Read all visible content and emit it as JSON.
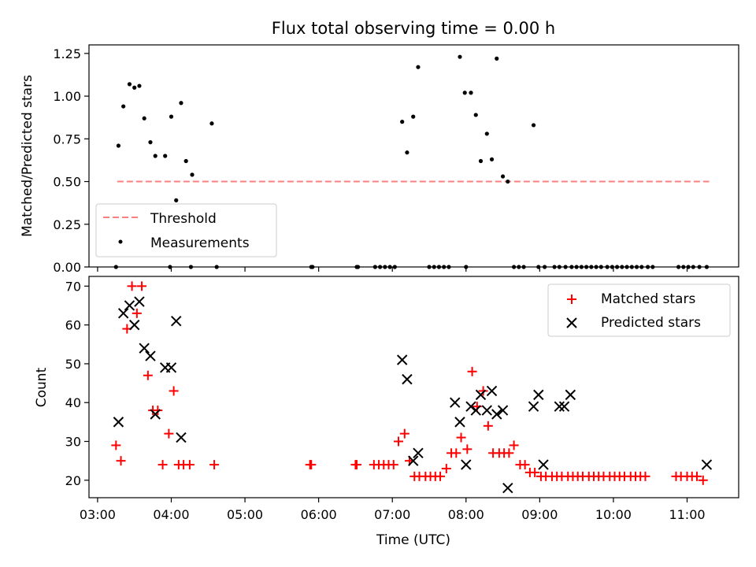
{
  "chart_data": [
    {
      "type": "scatter",
      "title": "Flux total observing time = 0.00 h",
      "xlabel": "",
      "ylabel": "Matched/Predicted stars",
      "xlim": [
        "02:53",
        "11:42"
      ],
      "ylim": [
        0,
        1.3
      ],
      "xticks": [
        "03:00",
        "04:00",
        "05:00",
        "06:00",
        "07:00",
        "08:00",
        "09:00",
        "10:00",
        "11:00"
      ],
      "xtick_labels_visible": false,
      "yticks": [
        "0.00",
        "0.25",
        "0.50",
        "0.75",
        "1.00",
        "1.25"
      ],
      "grid": false,
      "legend": "lower-left",
      "series": [
        {
          "name": "Threshold",
          "style": "dashed-line",
          "color": "#ff7f7f",
          "x": [
            "03:16",
            "11:18"
          ],
          "y": [
            0.5,
            0.5
          ]
        },
        {
          "name": "Measurements",
          "style": "points",
          "color": "#000000",
          "x": [
            "03:17",
            "03:21",
            "03:26",
            "03:30",
            "03:34",
            "03:38",
            "03:43",
            "03:47",
            "03:55",
            "04:00",
            "04:04",
            "04:08",
            "04:12",
            "04:17",
            "04:33",
            "07:08",
            "07:12",
            "07:17",
            "07:21",
            "07:55",
            "07:59",
            "08:04",
            "08:08",
            "08:12",
            "08:17",
            "08:21",
            "08:25",
            "08:30",
            "08:34",
            "08:55",
            "08:59",
            "09:16",
            "09:21",
            "11:16",
            "03:15",
            "03:59",
            "04:16",
            "04:37",
            "05:54",
            "05:55",
            "06:31",
            "06:32",
            "06:46",
            "06:50",
            "06:54",
            "06:58",
            "07:02",
            "07:30",
            "07:34",
            "07:38",
            "07:42",
            "07:46",
            "08:00",
            "08:39",
            "08:43",
            "08:47",
            "09:04",
            "09:12",
            "09:26",
            "09:30",
            "09:34",
            "09:38",
            "09:42",
            "09:46",
            "09:50",
            "09:55",
            "09:59",
            "10:03",
            "10:07",
            "10:11",
            "10:15",
            "10:19",
            "10:23",
            "10:28",
            "10:32",
            "10:53",
            "10:57",
            "11:01",
            "11:05",
            "11:10"
          ],
          "y": [
            0.71,
            0.94,
            1.07,
            1.05,
            1.06,
            0.87,
            0.73,
            0.65,
            0.65,
            0.88,
            0.39,
            0.96,
            0.62,
            0.54,
            0.84,
            0.85,
            0.67,
            0.88,
            1.17,
            1.23,
            1.02,
            1.02,
            0.89,
            0.62,
            0.78,
            0.63,
            1.22,
            0.53,
            0.5,
            0.83,
            0,
            0,
            0,
            0,
            0,
            0,
            0,
            0,
            0,
            0,
            0,
            0,
            0,
            0,
            0,
            0,
            0,
            0,
            0,
            0,
            0,
            0,
            0,
            0,
            0,
            0,
            0,
            0,
            0,
            0,
            0,
            0,
            0,
            0,
            0,
            0,
            0,
            0,
            0,
            0,
            0,
            0,
            0,
            0,
            0,
            0,
            0,
            0,
            0,
            0
          ],
          "note": ""
        }
      ]
    },
    {
      "type": "scatter",
      "title": "",
      "xlabel": "Time (UTC)",
      "ylabel": "Count",
      "xlim": [
        "02:53",
        "11:42"
      ],
      "ylim": [
        15.5,
        72.5
      ],
      "xticks": [
        "03:00",
        "04:00",
        "05:00",
        "06:00",
        "07:00",
        "08:00",
        "09:00",
        "10:00",
        "11:00"
      ],
      "yticks": [
        "20",
        "30",
        "40",
        "50",
        "60",
        "70"
      ],
      "grid": false,
      "legend": "top-right",
      "series": [
        {
          "name": "Matched stars",
          "marker": "+",
          "color": "#ff0000",
          "x": [
            "03:15",
            "03:19",
            "03:24",
            "03:28",
            "03:32",
            "03:36",
            "03:41",
            "03:45",
            "03:49",
            "03:53",
            "03:58",
            "04:02",
            "04:06",
            "04:10",
            "04:15",
            "04:35",
            "05:53",
            "05:54",
            "06:30",
            "06:31",
            "06:45",
            "06:49",
            "06:53",
            "06:57",
            "07:01",
            "07:05",
            "07:10",
            "07:14",
            "07:18",
            "07:22",
            "07:27",
            "07:31",
            "07:35",
            "07:39",
            "07:44",
            "07:48",
            "07:52",
            "07:56",
            "08:01",
            "08:05",
            "08:09",
            "08:14",
            "08:18",
            "08:22",
            "08:27",
            "08:31",
            "08:35",
            "08:39",
            "08:44",
            "08:48",
            "08:52",
            "08:56",
            "09:01",
            "09:05",
            "09:10",
            "09:14",
            "09:18",
            "09:23",
            "09:27",
            "09:31",
            "09:35",
            "09:40",
            "09:44",
            "09:48",
            "09:52",
            "09:57",
            "10:01",
            "10:05",
            "10:09",
            "10:14",
            "10:18",
            "10:22",
            "10:26",
            "10:51",
            "10:55",
            "11:00",
            "11:04",
            "11:08",
            "11:13"
          ],
          "y": [
            29,
            25,
            59,
            70,
            63,
            70,
            47,
            38,
            38,
            24,
            32,
            43,
            24,
            24,
            24,
            24,
            24,
            24,
            24,
            24,
            24,
            24,
            24,
            24,
            24,
            30,
            32,
            25,
            21,
            21,
            21,
            21,
            21,
            21,
            23,
            27,
            27,
            31,
            28,
            48,
            39,
            43,
            34,
            27,
            27,
            27,
            27,
            29,
            24,
            24,
            22,
            22,
            21,
            21,
            21,
            21,
            21,
            21,
            21,
            21,
            21,
            21,
            21,
            21,
            21,
            21,
            21,
            21,
            21,
            21,
            21,
            21,
            21,
            21,
            21,
            21,
            21,
            21,
            20
          ]
        },
        {
          "name": "Predicted stars",
          "marker": "x",
          "color": "#000000",
          "x": [
            "03:17",
            "03:21",
            "03:26",
            "03:30",
            "03:34",
            "03:38",
            "03:43",
            "03:47",
            "03:55",
            "04:00",
            "04:04",
            "04:08",
            "07:08",
            "07:12",
            "07:17",
            "07:21",
            "07:51",
            "07:55",
            "08:00",
            "08:04",
            "08:08",
            "08:12",
            "08:17",
            "08:21",
            "08:25",
            "08:30",
            "08:34",
            "08:55",
            "08:59",
            "09:03",
            "09:16",
            "09:20",
            "09:25",
            "11:16"
          ],
          "y": [
            35,
            63,
            65,
            60,
            66,
            54,
            52,
            37,
            49,
            49,
            61,
            31,
            51,
            46,
            25,
            27,
            40,
            35,
            24,
            39,
            38,
            42,
            38,
            43,
            37,
            38,
            18,
            39,
            42,
            24,
            39,
            39,
            42,
            24
          ],
          "note": ""
        }
      ]
    }
  ],
  "page": {
    "title": "Flux total observing time = 0.00 h",
    "ylabel_top": "Matched/Predicted stars",
    "ylabel_bottom": "Count",
    "xlabel": "Time (UTC)",
    "legend_top": [
      "Threshold",
      "Measurements"
    ],
    "legend_bottom": [
      "Matched stars",
      "Predicted stars"
    ]
  }
}
